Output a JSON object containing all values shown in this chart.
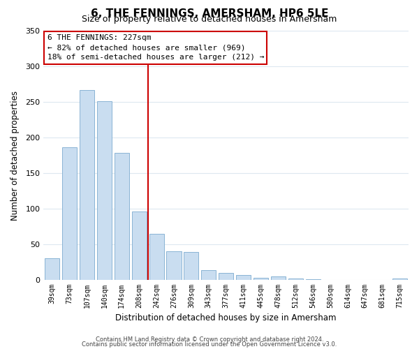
{
  "title": "6, THE FENNINGS, AMERSHAM, HP6 5LE",
  "subtitle": "Size of property relative to detached houses in Amersham",
  "xlabel": "Distribution of detached houses by size in Amersham",
  "ylabel": "Number of detached properties",
  "bar_labels": [
    "39sqm",
    "73sqm",
    "107sqm",
    "140sqm",
    "174sqm",
    "208sqm",
    "242sqm",
    "276sqm",
    "309sqm",
    "343sqm",
    "377sqm",
    "411sqm",
    "445sqm",
    "478sqm",
    "512sqm",
    "546sqm",
    "580sqm",
    "614sqm",
    "647sqm",
    "681sqm",
    "715sqm"
  ],
  "bar_values": [
    30,
    186,
    267,
    251,
    178,
    96,
    65,
    40,
    39,
    14,
    10,
    7,
    3,
    5,
    2,
    1,
    0,
    0,
    0,
    0,
    2
  ],
  "bar_color": "#c9ddf0",
  "bar_edge_color": "#8ab4d4",
  "vline_x_index": 5.5,
  "vline_color": "#cc0000",
  "annotation_line1": "6 THE FENNINGS: 227sqm",
  "annotation_line2": "← 82% of detached houses are smaller (969)",
  "annotation_line3": "18% of semi-detached houses are larger (212) →",
  "annotation_box_color": "#ffffff",
  "annotation_box_edge_color": "#cc0000",
  "ylim": [
    0,
    350
  ],
  "yticks": [
    0,
    50,
    100,
    150,
    200,
    250,
    300,
    350
  ],
  "footnote1": "Contains HM Land Registry data © Crown copyright and database right 2024.",
  "footnote2": "Contains public sector information licensed under the Open Government Licence v3.0.",
  "background_color": "#ffffff",
  "grid_color": "#dde8f0",
  "title_fontsize": 11,
  "subtitle_fontsize": 9,
  "axis_label_fontsize": 8.5,
  "tick_fontsize": 7,
  "annotation_fontsize": 8,
  "footnote_fontsize": 6
}
